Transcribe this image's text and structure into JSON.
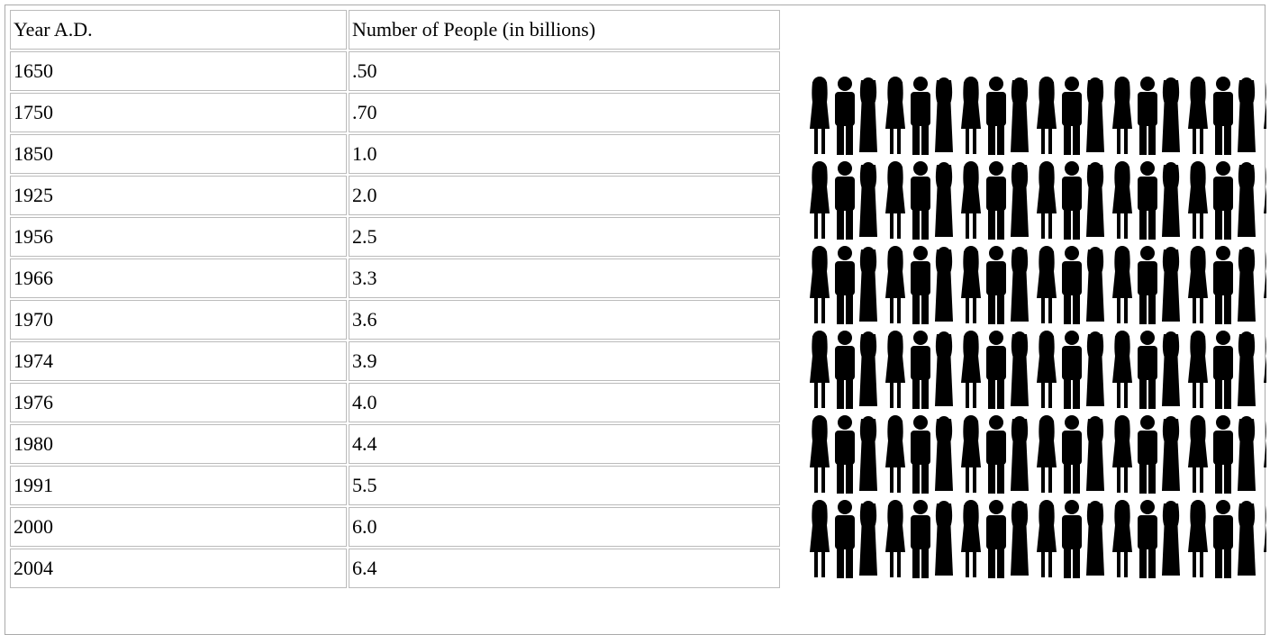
{
  "table": {
    "header": [
      "Year A.D.",
      "Number of People (in billions)"
    ],
    "rows": [
      [
        "1650",
        ".50"
      ],
      [
        "1750",
        ".70"
      ],
      [
        "1850",
        "1.0"
      ],
      [
        "1925",
        "2.0"
      ],
      [
        "1956",
        "2.5"
      ],
      [
        "1966",
        "3.3"
      ],
      [
        "1970",
        "3.6"
      ],
      [
        "1974",
        "3.9"
      ],
      [
        "1976",
        "4.0"
      ],
      [
        "1980",
        "4.4"
      ],
      [
        "1991",
        "5.5"
      ],
      [
        "2000",
        "6.0"
      ],
      [
        "2004",
        "6.4"
      ]
    ]
  }
}
